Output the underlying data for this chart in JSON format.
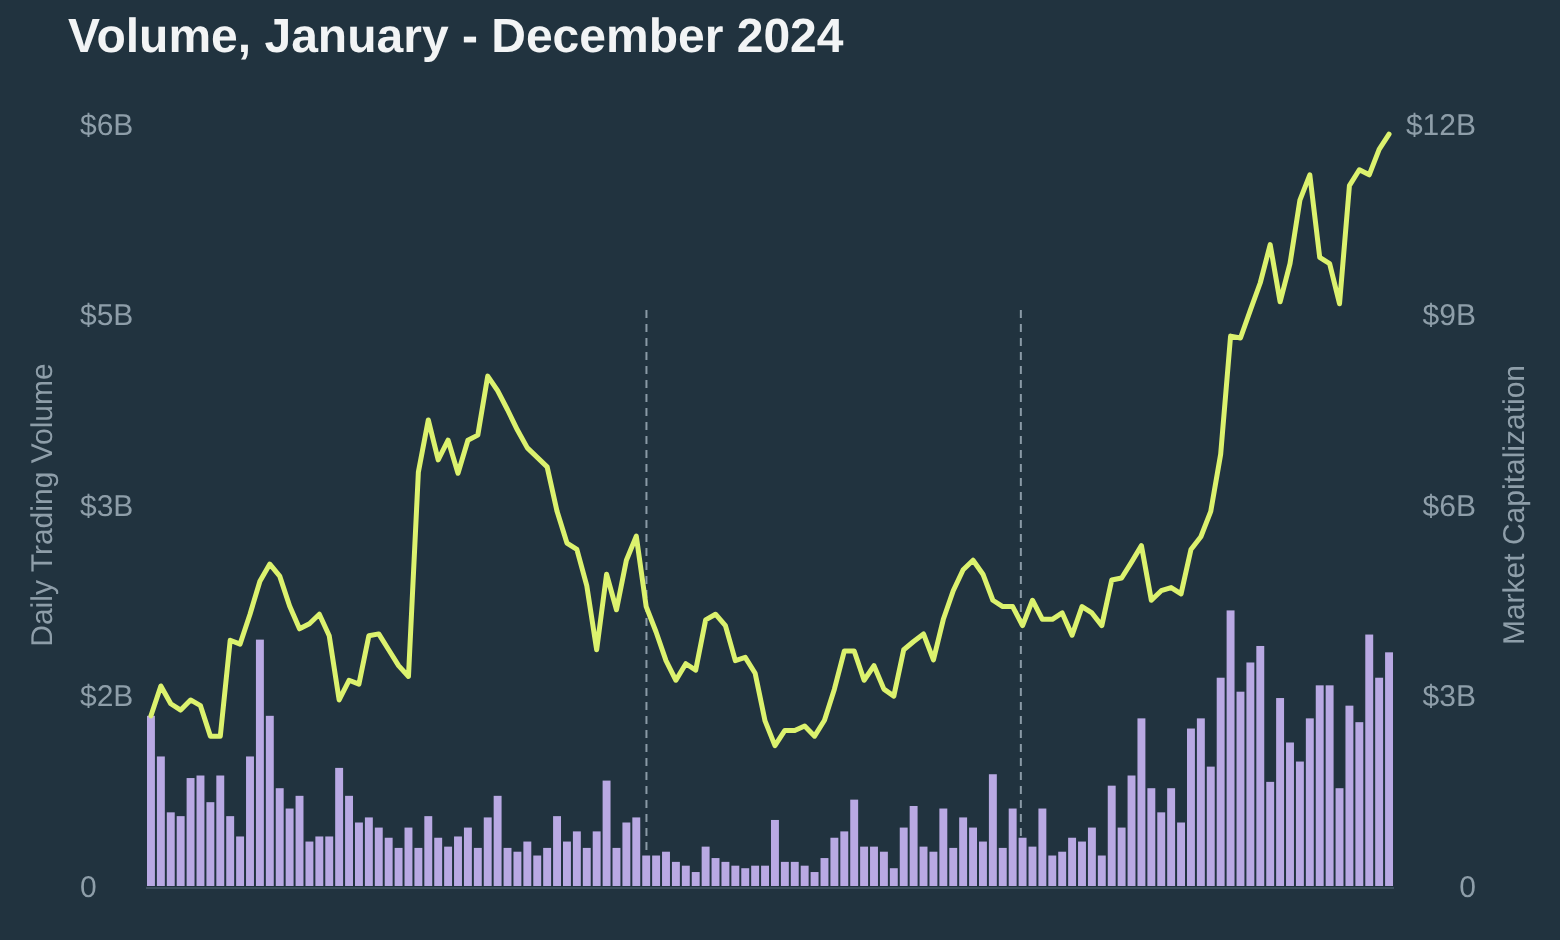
{
  "chart_data": {
    "type": "bar",
    "title": "Volume, January - December 2024",
    "ylabel": "Daily Trading Volume",
    "y2label": "Market Capitalization",
    "categories": [
      null,
      null,
      null,
      null,
      null,
      null,
      null,
      null,
      null,
      null,
      null,
      null,
      null,
      null,
      null,
      null,
      null,
      null,
      null,
      null,
      null,
      null,
      null,
      null,
      null,
      null,
      null,
      null,
      null,
      null,
      null,
      null,
      null,
      null,
      null,
      null,
      null,
      null,
      null,
      null,
      null,
      null,
      null,
      null,
      null,
      null,
      null,
      null,
      null,
      null,
      null,
      null,
      null,
      null,
      null,
      null,
      null,
      null,
      null,
      null,
      null,
      null,
      null,
      null,
      null,
      null,
      null,
      null,
      null,
      null,
      null,
      null,
      null,
      null,
      null,
      null,
      null,
      null,
      null,
      null,
      null,
      null,
      null,
      null,
      null,
      null,
      null,
      null,
      null,
      null,
      null,
      null,
      null,
      null,
      null,
      null,
      null,
      null,
      null,
      null,
      null,
      null,
      null,
      null,
      null,
      null,
      null,
      null,
      null,
      null,
      null,
      null,
      null,
      null,
      null,
      null,
      null,
      null,
      null,
      null,
      null,
      null,
      null,
      null,
      null,
      null
    ],
    "ylim": [
      0,
      6
    ],
    "yticks": [
      0,
      {
        "value": 1.5,
        "label": "$2B"
      },
      {
        "value": 3,
        "label": "$3B"
      },
      {
        "value": 4.5,
        "label": "$5B"
      },
      {
        "value": 6,
        "label": "$6B"
      }
    ],
    "y2lim": [
      0,
      12
    ],
    "y2ticks": [
      0,
      {
        "value": 3,
        "label": "$3B"
      },
      {
        "value": 6,
        "label": "$6B"
      },
      {
        "value": 9,
        "label": "$9B"
      },
      {
        "value": 12,
        "label": "$12B"
      }
    ],
    "tick_labels": "y",
    "grid": false,
    "series": [
      {
        "color": "#b9a9e3",
        "values": [
          1.34,
          1.02,
          0.58,
          0.55,
          0.85,
          0.87,
          0.66,
          0.87,
          0.55,
          0.39,
          1.02,
          1.94,
          1.34,
          0.77,
          0.61,
          0.71,
          0.35,
          0.39,
          0.39,
          0.93,
          0.71,
          0.5,
          0.54,
          0.46,
          0.38,
          0.3,
          0.46,
          0.3,
          0.55,
          0.38,
          0.31,
          0.39,
          0.46,
          0.3,
          0.54,
          0.71,
          0.3,
          0.27,
          0.35,
          0.24,
          0.3,
          0.55,
          0.35,
          0.43,
          0.3,
          0.43,
          0.83,
          0.3,
          0.5,
          0.54,
          0.24,
          0.24,
          0.27,
          0.19,
          0.16,
          0.11,
          0.31,
          0.22,
          0.19,
          0.16,
          0.14,
          0.16,
          0.16,
          0.52,
          0.19,
          0.19,
          0.16,
          0.11,
          0.22,
          0.38,
          0.43,
          0.68,
          0.31,
          0.31,
          0.27,
          0.14,
          0.46,
          0.63,
          0.31,
          0.27,
          0.61,
          0.3,
          0.54,
          0.46,
          0.35,
          0.88,
          0.3,
          0.61,
          0.38,
          0.31,
          0.61,
          0.24,
          0.27,
          0.38,
          0.35,
          0.46,
          0.24,
          0.79,
          0.46,
          0.87,
          1.32,
          0.77,
          0.58,
          0.77,
          0.5,
          1.24,
          1.32,
          0.94,
          1.64,
          2.17,
          1.53,
          1.76,
          1.89,
          0.82,
          1.48,
          1.13,
          0.98,
          1.32,
          1.58,
          1.58,
          0.77,
          1.42,
          1.29,
          1.98,
          1.64,
          1.84
        ]
      },
      {
        "type": "line",
        "axis": "y2",
        "color": "#dcf26e",
        "values": [
          2.68,
          3.15,
          2.87,
          2.77,
          2.93,
          2.84,
          2.36,
          2.36,
          3.87,
          3.81,
          4.28,
          4.8,
          5.07,
          4.88,
          4.41,
          4.05,
          4.13,
          4.28,
          3.94,
          2.93,
          3.24,
          3.18,
          3.94,
          3.97,
          3.72,
          3.47,
          3.3,
          6.52,
          7.34,
          6.71,
          7.02,
          6.5,
          7.02,
          7.1,
          8.03,
          7.8,
          7.5,
          7.18,
          6.9,
          6.75,
          6.6,
          5.9,
          5.4,
          5.3,
          4.73,
          3.72,
          4.91,
          4.35,
          5.13,
          5.51,
          4.4,
          4.0,
          3.55,
          3.24,
          3.5,
          3.4,
          4.19,
          4.28,
          4.1,
          3.55,
          3.6,
          3.35,
          2.6,
          2.21,
          2.45,
          2.45,
          2.52,
          2.36,
          2.61,
          3.1,
          3.7,
          3.7,
          3.24,
          3.47,
          3.1,
          2.99,
          3.72,
          3.85,
          3.97,
          3.56,
          4.2,
          4.65,
          4.98,
          5.13,
          4.91,
          4.5,
          4.4,
          4.4,
          4.1,
          4.5,
          4.2,
          4.2,
          4.3,
          3.95,
          4.4,
          4.3,
          4.1,
          4.82,
          4.85,
          5.1,
          5.36,
          4.5,
          4.65,
          4.7,
          4.6,
          5.3,
          5.5,
          5.9,
          6.8,
          8.66,
          8.63,
          9.07,
          9.5,
          10.1,
          9.2,
          9.8,
          10.8,
          11.2,
          9.9,
          9.8,
          9.17,
          11.03,
          11.28,
          11.2,
          11.6,
          11.84
        ]
      }
    ]
  }
}
